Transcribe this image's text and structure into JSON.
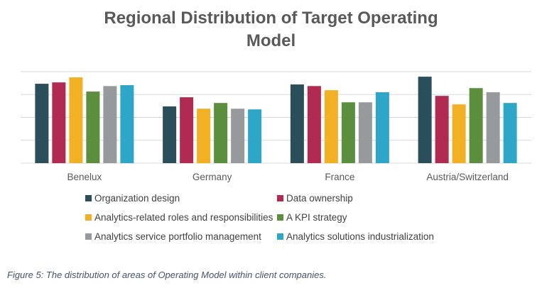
{
  "chart_data": {
    "type": "bar",
    "title": "Regional Distribution of Target Operating Model",
    "title_lines": [
      "Regional Distribution of Target Operating",
      "Model"
    ],
    "xlabel": "",
    "ylabel": "",
    "ylim": [
      0,
      4
    ],
    "y_ticks_labeled": false,
    "grid": true,
    "legend_position": "bottom",
    "categories": [
      "Benelux",
      "Germany",
      "France",
      "Austria/Switzerland"
    ],
    "series": [
      {
        "name": "Organization design",
        "color": "#2a4f5a",
        "values": [
          3.47,
          2.48,
          3.44,
          3.78
        ]
      },
      {
        "name": "Data ownership",
        "color": "#b02a52",
        "values": [
          3.53,
          2.88,
          3.37,
          2.94
        ]
      },
      {
        "name": "Analytics-related roles and responsibilities",
        "color": "#f2b024",
        "values": [
          3.75,
          2.38,
          3.19,
          2.57
        ]
      },
      {
        "name": "A KPI strategy",
        "color": "#5b8f3e",
        "values": [
          3.13,
          2.63,
          2.66,
          3.28
        ]
      },
      {
        "name": "Analytics service portfolio management",
        "color": "#979a9c",
        "values": [
          3.37,
          2.38,
          2.66,
          3.1
        ]
      },
      {
        "name": "Analytics solutions industrialization",
        "color": "#2ea6c8",
        "values": [
          3.41,
          2.35,
          3.1,
          2.63
        ]
      }
    ]
  },
  "caption": "Figure 5: The distribution of areas of Operating Model within client companies."
}
